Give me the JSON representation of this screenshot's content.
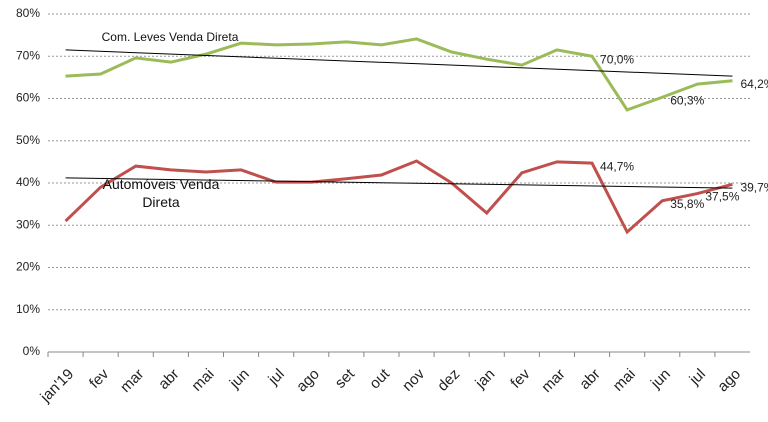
{
  "chart_data": {
    "type": "line",
    "categories": [
      "jan'19",
      "fev",
      "mar",
      "abr",
      "mai",
      "jun",
      "jul",
      "ago",
      "set",
      "out",
      "nov",
      "dez",
      "jan",
      "fev",
      "mar",
      "abr",
      "mai",
      "jun",
      "jul",
      "ago"
    ],
    "series": [
      {
        "name": "Com. Leves Venda Direta",
        "color": "#9bbb59",
        "values": [
          65.3,
          65.8,
          69.6,
          68.6,
          70.5,
          73.1,
          72.7,
          72.9,
          73.4,
          72.7,
          74.1,
          71.0,
          69.3,
          67.9,
          71.5,
          70.0,
          57.3,
          60.3,
          63.4,
          64.2
        ],
        "value_labels": [
          null,
          null,
          null,
          null,
          null,
          null,
          null,
          null,
          null,
          null,
          null,
          null,
          null,
          null,
          null,
          "70,0%",
          null,
          "60,3%",
          null,
          "64,2%"
        ],
        "trend": [
          71.5,
          65.3
        ]
      },
      {
        "name": "Automóveis Venda Direta",
        "color": "#c0504d",
        "values": [
          31.0,
          39.0,
          44.0,
          43.1,
          42.6,
          43.1,
          40.2,
          40.2,
          41.0,
          41.9,
          45.2,
          40.0,
          32.9,
          42.4,
          45.0,
          44.7,
          28.4,
          35.8,
          37.5,
          39.7
        ],
        "value_labels": [
          null,
          null,
          null,
          null,
          null,
          null,
          null,
          null,
          null,
          null,
          null,
          null,
          null,
          null,
          null,
          "44,7%",
          null,
          "35,8%",
          "37,5%",
          "39,7%"
        ],
        "trend": [
          41.2,
          38.8
        ]
      }
    ],
    "trend_color": "#000000",
    "ylim": [
      0,
      80
    ],
    "yticks": [
      {
        "value": 0,
        "label": "0%"
      },
      {
        "value": 10,
        "label": "10%"
      },
      {
        "value": 20,
        "label": "20%"
      },
      {
        "value": 30,
        "label": "30%"
      },
      {
        "value": 40,
        "label": "40%"
      },
      {
        "value": 50,
        "label": "50%"
      },
      {
        "value": 60,
        "label": "60%"
      },
      {
        "value": 70,
        "label": "70%"
      },
      {
        "value": 80,
        "label": "80%"
      }
    ],
    "grid": true
  }
}
